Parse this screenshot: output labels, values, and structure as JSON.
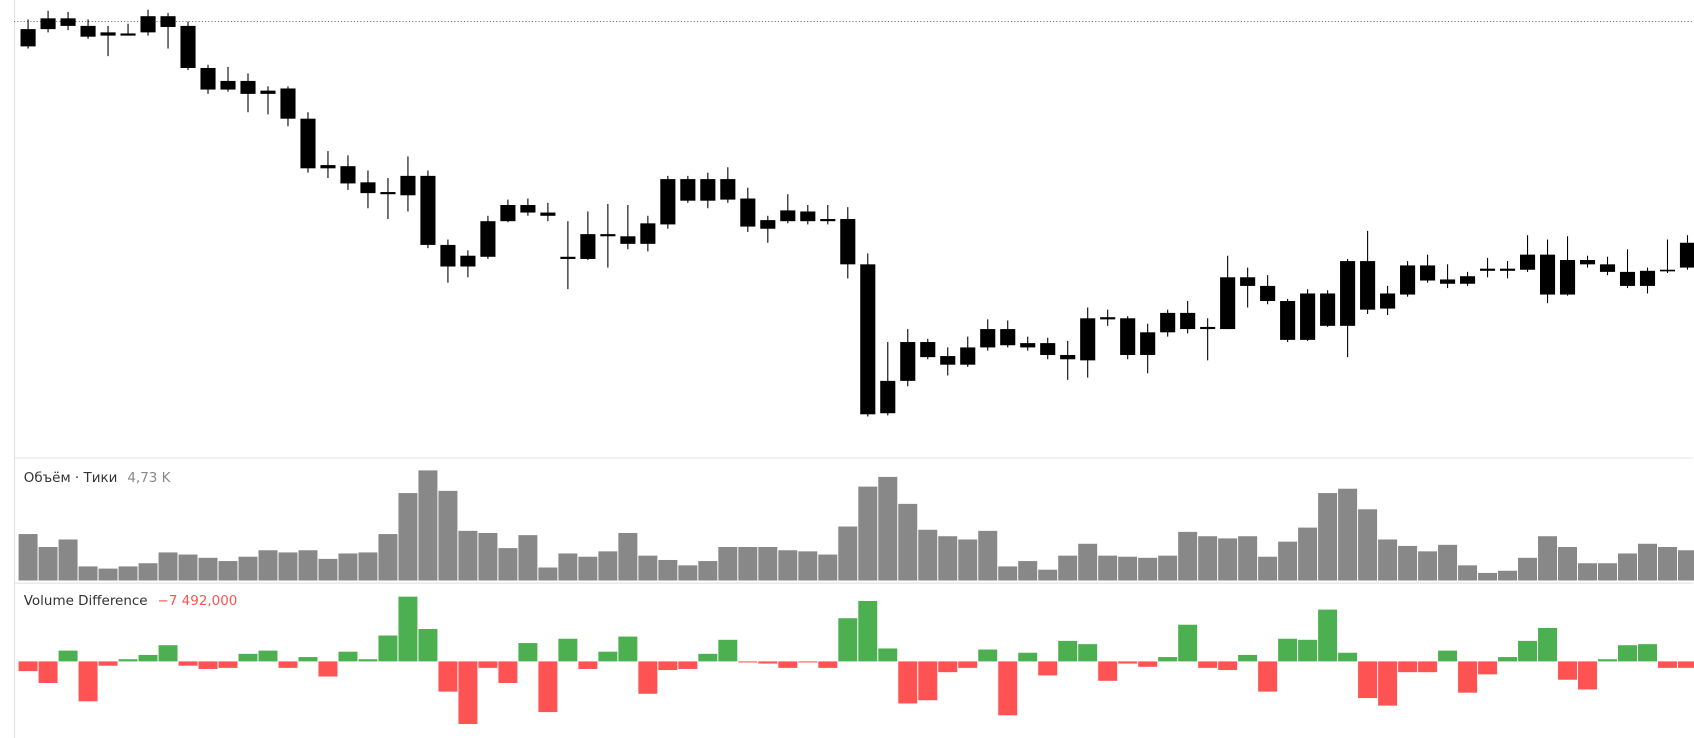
{
  "chart_data": [
    {
      "type": "candlestick",
      "color": "#000000",
      "ylim": [
        0,
        420
      ],
      "price_line": 404,
      "open": [
        397,
        407,
        400,
        400,
        394,
        391,
        394,
        399,
        400,
        361,
        349,
        337,
        337,
        342,
        268,
        271,
        254,
        245,
        244,
        243,
        197,
        197,
        187,
        219,
        234,
        227,
        227,
        184,
        207,
        205,
        198,
        217,
        258,
        258,
        238,
        239,
        240,
        220,
        229,
        228,
        221,
        179,
        40,
        41,
        107,
        107,
        94,
        102,
        102,
        119,
        102,
        106,
        91,
        90,
        130,
        129,
        116,
        116,
        119,
        121,
        167,
        159,
        159,
        109,
        109,
        122,
        122,
        182,
        152,
        178,
        178,
        161,
        168,
        175,
        173,
        174,
        151,
        183,
        183,
        172,
        159,
        159,
        174,
        199
      ],
      "high": [
        406,
        414,
        413,
        406,
        400,
        402,
        415,
        412,
        404,
        364,
        362,
        356,
        344,
        344,
        320,
        284,
        280,
        266,
        259,
        279,
        266,
        202,
        192,
        224,
        239,
        240,
        236,
        219,
        228,
        235,
        234,
        224,
        261,
        261,
        264,
        269,
        250,
        224,
        244,
        234,
        234,
        232,
        189,
        107,
        119,
        110,
        102,
        112,
        128,
        127,
        112,
        111,
        108,
        139,
        137,
        131,
        124,
        137,
        145,
        129,
        187,
        176,
        169,
        147,
        156,
        155,
        184,
        210,
        159,
        182,
        188,
        179,
        172,
        185,
        182,
        206,
        202,
        205,
        187,
        186,
        193,
        176,
        202,
        206
      ],
      "low": [
        379,
        394,
        396,
        388,
        372,
        391,
        391,
        379,
        359,
        337,
        339,
        320,
        318,
        307,
        264,
        259,
        248,
        231,
        221,
        228,
        194,
        162,
        167,
        184,
        218,
        224,
        219,
        156,
        183,
        176,
        193,
        191,
        212,
        236,
        231,
        236,
        209,
        199,
        217,
        216,
        216,
        166,
        38,
        39,
        66,
        91,
        76,
        84,
        99,
        102,
        99,
        91,
        72,
        74,
        122,
        91,
        78,
        112,
        115,
        90,
        119,
        139,
        142,
        107,
        108,
        121,
        93,
        133,
        132,
        149,
        162,
        157,
        159,
        167,
        166,
        172,
        143,
        150,
        176,
        169,
        157,
        152,
        171,
        174
      ],
      "close": [
        381,
        397,
        407,
        390,
        391,
        393,
        409,
        409,
        361,
        341,
        341,
        349,
        340,
        314,
        314,
        268,
        270,
        255,
        246,
        261,
        261,
        177,
        177,
        186,
        219,
        234,
        224,
        186,
        184,
        207,
        205,
        198,
        216,
        238,
        258,
        258,
        214,
        212,
        219,
        219,
        219,
        221,
        179,
        71,
        71,
        93,
        86,
        86,
        119,
        104,
        106,
        95,
        95,
        129,
        128,
        95,
        95,
        134,
        134,
        119,
        119,
        167,
        145,
        145,
        152,
        152,
        182,
        137,
        138,
        151,
        164,
        165,
        161,
        173,
        175,
        188,
        188,
        151,
        179,
        179,
        172,
        173,
        173,
        176
      ]
    },
    {
      "type": "bar",
      "title": "Объём · Тики",
      "color": "#888888",
      "ylim": [
        0,
        18250
      ],
      "values": [
        7270,
        5240,
        6420,
        2200,
        1860,
        2200,
        2700,
        4390,
        4060,
        3550,
        3040,
        3720,
        4730,
        4390,
        4730,
        3380,
        4230,
        4390,
        7270,
        13690,
        17240,
        14030,
        7770,
        7440,
        5070,
        7100,
        2030,
        4230,
        3720,
        4560,
        7440,
        3890,
        3210,
        2370,
        3040,
        5240,
        5240,
        5240,
        4730,
        4560,
        4060,
        8450,
        14700,
        16220,
        12000,
        7940,
        6930,
        6420,
        7770,
        2200,
        3040,
        1690,
        3890,
        5750,
        3890,
        3720,
        3550,
        3890,
        7610,
        6930,
        6590,
        6930,
        3720,
        6080,
        8280,
        13690,
        14370,
        11150,
        6420,
        5410,
        4560,
        5580,
        2370,
        1180,
        1520,
        3550,
        6930,
        5240,
        2700,
        2700,
        4230,
        5750,
        5240,
        4730
      ],
      "value_labels": [
        null,
        null,
        null,
        null,
        null,
        null,
        null,
        null,
        null,
        null,
        null,
        null,
        null,
        null,
        null,
        null,
        null,
        null,
        null,
        null,
        null,
        null,
        null,
        null,
        null,
        null,
        null,
        null,
        null,
        null,
        null,
        null,
        null,
        null,
        null,
        null,
        null,
        null,
        null,
        null,
        null,
        null,
        null,
        null,
        null,
        null,
        null,
        null,
        null,
        null,
        null,
        null,
        null,
        null,
        null,
        null,
        null,
        null,
        null,
        null,
        null,
        null,
        null,
        null,
        null,
        null,
        null,
        null,
        null,
        null,
        null,
        null,
        null,
        null,
        null,
        null,
        null,
        null,
        null,
        null,
        null,
        null,
        null,
        "4,73 K"
      ]
    },
    {
      "type": "bar",
      "title": "Volume Difference",
      "positive_color": "#4caf50",
      "negative_color": "#ff5252",
      "ylim": [
        -88750,
        85000
      ],
      "values": [
        -11250,
        -25000,
        12500,
        -46250,
        -5000,
        2500,
        7500,
        18750,
        -5000,
        -8750,
        -7500,
        8750,
        12500,
        -7500,
        5000,
        -17500,
        11250,
        2500,
        30000,
        75000,
        37500,
        -35000,
        -72500,
        -7500,
        -25000,
        21250,
        -58750,
        26250,
        -8750,
        11250,
        28750,
        -37500,
        -10000,
        -8750,
        8750,
        25000,
        -1250,
        -2500,
        -7500,
        -1250,
        -7500,
        50000,
        70000,
        15000,
        -48750,
        -45000,
        -12500,
        -7500,
        13750,
        -62500,
        10000,
        -16250,
        23750,
        20000,
        -22500,
        -2500,
        -6250,
        5000,
        42500,
        -7500,
        -10000,
        7500,
        -35000,
        26250,
        25000,
        60000,
        10000,
        -42500,
        -51250,
        -12500,
        -12500,
        12500,
        -36250,
        -15000,
        5000,
        23750,
        38750,
        -21250,
        -32500,
        2500,
        18750,
        20000,
        -7500,
        -7492
      ],
      "value_labels": [
        null,
        null,
        null,
        null,
        null,
        null,
        null,
        null,
        null,
        null,
        null,
        null,
        null,
        null,
        null,
        null,
        null,
        null,
        null,
        null,
        null,
        null,
        null,
        null,
        null,
        null,
        null,
        null,
        null,
        null,
        null,
        null,
        null,
        null,
        null,
        null,
        null,
        null,
        null,
        null,
        null,
        null,
        null,
        null,
        null,
        null,
        null,
        null,
        null,
        null,
        null,
        null,
        null,
        null,
        null,
        null,
        null,
        null,
        null,
        null,
        null,
        null,
        null,
        null,
        null,
        null,
        null,
        null,
        null,
        null,
        null,
        null,
        null,
        null,
        null,
        null,
        null,
        null,
        null,
        null,
        null,
        null,
        null,
        "−7 492,000"
      ]
    }
  ]
}
